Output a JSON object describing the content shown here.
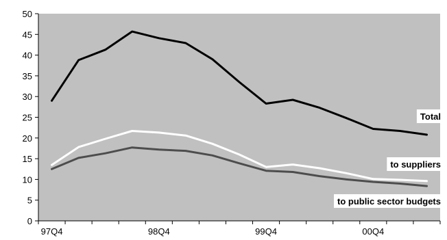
{
  "chart_data": {
    "type": "line",
    "title": "",
    "xlabel": "",
    "ylabel": "",
    "ylim": [
      0,
      50
    ],
    "yticks": [
      0,
      5,
      10,
      15,
      20,
      25,
      30,
      35,
      40,
      45,
      50
    ],
    "x": [
      "97Q4",
      "98Q1",
      "98Q2",
      "98Q3",
      "98Q4",
      "99Q1",
      "99Q2",
      "99Q3",
      "99Q4",
      "00Q1",
      "00Q2",
      "00Q3",
      "00Q4",
      "01Q1",
      "01Q2"
    ],
    "x_tick_labels": [
      {
        "label": "97Q4",
        "index": 0
      },
      {
        "label": "98Q4",
        "index": 4
      },
      {
        "label": "99Q4",
        "index": 8
      },
      {
        "label": "00Q4",
        "index": 12
      }
    ],
    "grid": false,
    "plot_background": "#c0c0c0",
    "series": [
      {
        "name": "Total",
        "color": "#000000",
        "values": [
          29,
          38.8,
          41.3,
          45.7,
          44.1,
          42.9,
          39,
          33.5,
          28.3,
          29.2,
          27.3,
          24.8,
          22.2,
          21.7,
          20.8
        ]
      },
      {
        "name": "to suppliers",
        "color": "#ffffff",
        "values": [
          13.5,
          17.8,
          19.8,
          21.7,
          21.3,
          20.6,
          18.6,
          16,
          13,
          13.6,
          12.7,
          11.5,
          10.1,
          9.9,
          9.6
        ]
      },
      {
        "name": "to public sector budgets",
        "color": "#4d4d4d",
        "values": [
          12.5,
          15.2,
          16.3,
          17.7,
          17.2,
          16.9,
          15.8,
          13.9,
          12.1,
          11.8,
          10.8,
          10,
          9.4,
          9,
          8.4
        ]
      }
    ]
  }
}
